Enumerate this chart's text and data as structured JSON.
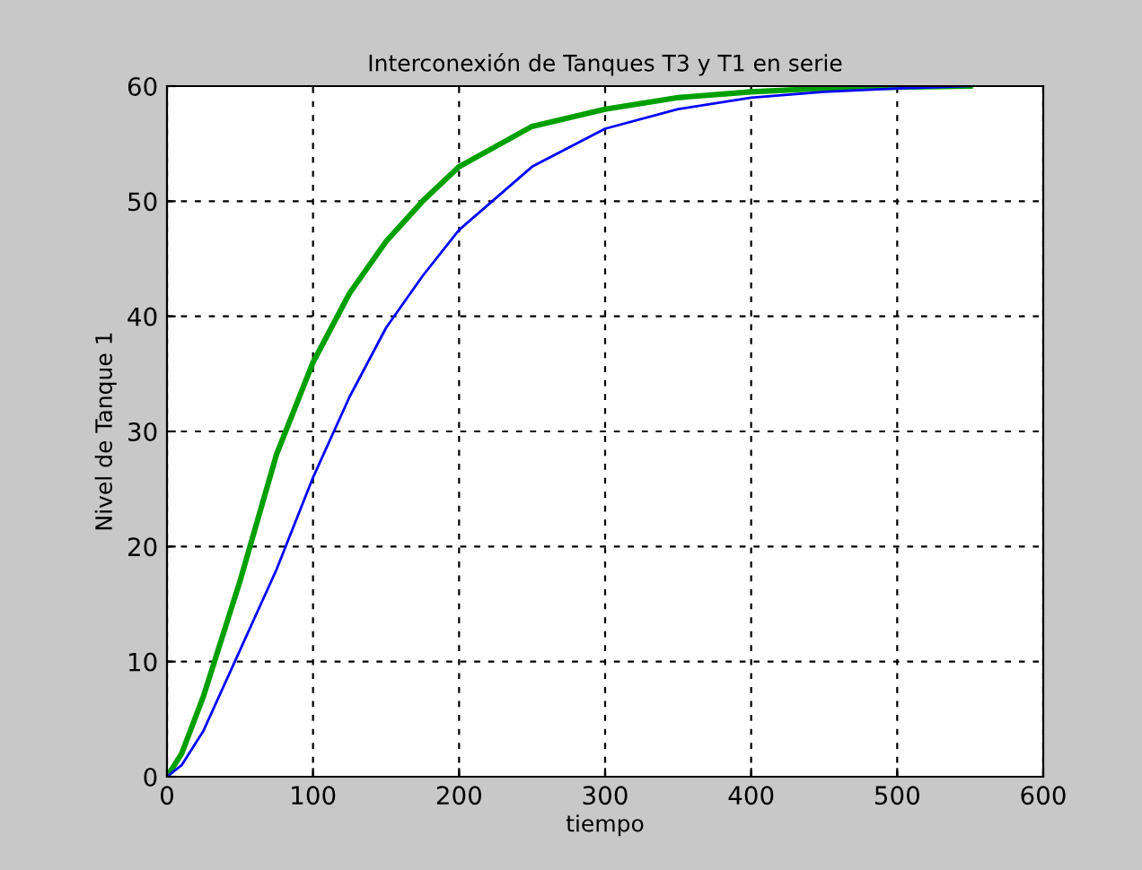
{
  "chart_data": {
    "type": "line",
    "title": "Interconexión de Tanques T3 y T1 en serie",
    "xlabel": "tiempo",
    "ylabel": "Nivel de Tanque 1",
    "xlim": [
      0,
      600
    ],
    "ylim": [
      0,
      60
    ],
    "xticks": [
      0,
      100,
      200,
      300,
      400,
      500,
      600
    ],
    "yticks": [
      0,
      10,
      20,
      30,
      40,
      50,
      60
    ],
    "grid": true,
    "line_style": "solid",
    "marker": "none",
    "series": [
      {
        "color": "#00a000",
        "x": [
          0,
          10,
          25,
          50,
          75,
          100,
          125,
          150,
          175,
          200,
          250,
          300,
          350,
          400,
          450,
          500,
          550
        ],
        "values": [
          0,
          2,
          7,
          17,
          28,
          36,
          42,
          46.5,
          50,
          53,
          56.5,
          58,
          59,
          59.5,
          59.8,
          59.9,
          60
        ]
      },
      {
        "color": "#0000ff",
        "x": [
          0,
          10,
          25,
          50,
          75,
          100,
          125,
          150,
          175,
          200,
          250,
          300,
          350,
          400,
          450,
          500,
          550
        ],
        "values": [
          0,
          1,
          4,
          11,
          18,
          26,
          33,
          39,
          43.5,
          47.5,
          53,
          56.3,
          58,
          59,
          59.5,
          59.8,
          60
        ]
      }
    ]
  }
}
